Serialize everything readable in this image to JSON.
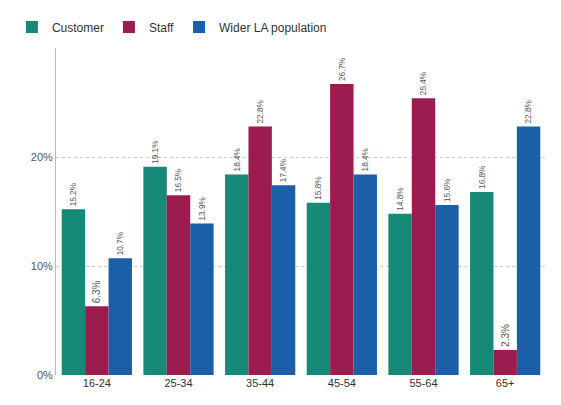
{
  "chart_data": {
    "type": "bar",
    "categories": [
      "16-24",
      "25-34",
      "35-44",
      "45-54",
      "55-64",
      "65+"
    ],
    "series": [
      {
        "name": "Customer",
        "color": "#168a76",
        "values": [
          15.2,
          19.1,
          18.4,
          15.8,
          14.8,
          16.8
        ],
        "value_labels": [
          "15.2%",
          "19.1%",
          "18.4%",
          "15.8%",
          "14.8%",
          "16.8%"
        ]
      },
      {
        "name": "Staff",
        "color": "#9c1c4f",
        "values": [
          6.3,
          16.5,
          22.8,
          26.7,
          25.4,
          2.3
        ],
        "value_labels": [
          "6.3%",
          "16.5%",
          "22.8%",
          "26.7%",
          "25.4%",
          "2.3%"
        ]
      },
      {
        "name": "Wider LA population",
        "color": "#1b5fa8",
        "values": [
          10.7,
          13.9,
          17.4,
          18.4,
          15.6,
          22.8
        ],
        "value_labels": [
          "10.7%",
          "13.9%",
          "17.4%",
          "18.4%",
          "15.6%",
          "22.8%"
        ]
      }
    ],
    "ylim": [
      0,
      30
    ],
    "yticks": [
      {
        "value": 0,
        "label": "0%"
      },
      {
        "value": 10,
        "label": "10%"
      },
      {
        "value": 20,
        "label": "20%"
      }
    ],
    "grid": true,
    "legend": "top left",
    "data_labels": true
  }
}
